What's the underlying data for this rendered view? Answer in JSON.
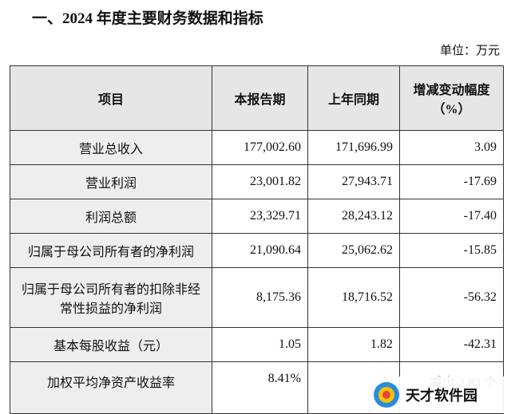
{
  "title": "一、2024 年度主要财务数据和指标",
  "unit": "单位：万元",
  "table": {
    "header": [
      "项目",
      "本报告期",
      "上年同期",
      "增减变动幅度（%）"
    ],
    "rows": [
      {
        "item": "营业总收入",
        "current": "177,002.60",
        "previous": "171,696.99",
        "change": "3.09"
      },
      {
        "item": "营业利润",
        "current": "23,001.82",
        "previous": "27,943.71",
        "change": "-17.69"
      },
      {
        "item": "利润总额",
        "current": "23,329.71",
        "previous": "28,243.12",
        "change": "-17.40"
      },
      {
        "item": "归属于母公司所有者的净利润",
        "current": "21,090.64",
        "previous": "25,062.62",
        "change": "-15.85"
      },
      {
        "item": "归属于母公司所有者的扣除非经常性损益的净利润",
        "current": "8,175.36",
        "previous": "18,716.52",
        "change": "-56.32"
      },
      {
        "item": "基本每股收益（元）",
        "current": "1.05",
        "previous": "1.82",
        "change": "-42.31"
      },
      {
        "item": "加权平均净资产收益率",
        "current": "8.41%",
        "change": "减少 2.83 个"
      }
    ]
  },
  "watermark": "天才软件园"
}
